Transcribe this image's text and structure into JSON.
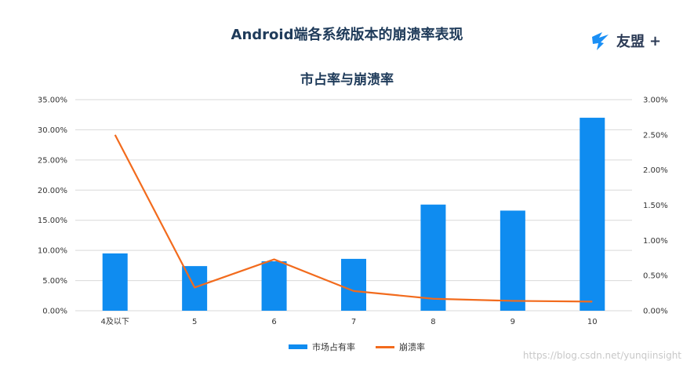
{
  "page": {
    "title": "Android端各系统版本的崩溃率表现",
    "brand_name": "友盟",
    "brand_plus": "+",
    "watermark": "https://blog.csdn.net/yunqiinsight"
  },
  "colors": {
    "bar": "#0f8cf0",
    "line": "#f26b1d",
    "grid": "#d9d9d9",
    "axis_text": "#333333",
    "title": "#1f3b5a"
  },
  "chart_data": {
    "type": "bar",
    "title": "市占率与崩溃率",
    "categories": [
      "4及以下",
      "5",
      "6",
      "7",
      "8",
      "9",
      "10"
    ],
    "series": [
      {
        "name": "市场占有率",
        "type": "bar",
        "axis": "left",
        "values": [
          9.5,
          7.4,
          8.2,
          8.6,
          17.6,
          16.6,
          32.0
        ]
      },
      {
        "name": "崩溃率",
        "type": "line",
        "axis": "right",
        "values": [
          2.5,
          0.33,
          0.73,
          0.28,
          0.17,
          0.14,
          0.13
        ]
      }
    ],
    "y_left": {
      "min": 0,
      "max": 35,
      "ticks": [
        "0.00%",
        "5.00%",
        "10.00%",
        "15.00%",
        "20.00%",
        "25.00%",
        "30.00%",
        "35.00%"
      ]
    },
    "y_right": {
      "min": 0,
      "max": 3.0,
      "ticks": [
        "0.00%",
        "0.50%",
        "1.00%",
        "1.50%",
        "2.00%",
        "2.50%",
        "3.00%"
      ]
    },
    "legend": [
      "市场占有率",
      "崩溃率"
    ],
    "legend_position": "bottom"
  }
}
